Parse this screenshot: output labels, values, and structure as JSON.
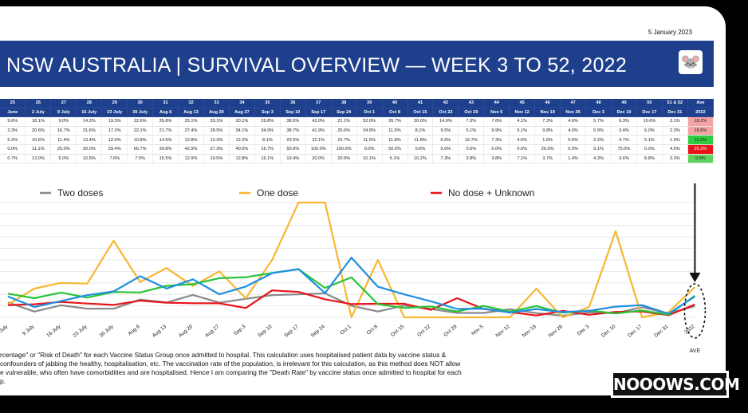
{
  "report_date": "5 January 2023",
  "title": "NSW AUSTRALIA  |  SURVIVAL OVERVIEW — WEEK 3 TO 52, 2022",
  "mascot_icon": "mouse-face-icon",
  "table": {
    "week_row": [
      "25",
      "26",
      "27",
      "28",
      "29",
      "30",
      "31",
      "32",
      "33",
      "34",
      "35",
      "36",
      "37",
      "38",
      "39",
      "40",
      "41",
      "42",
      "43",
      "44",
      "45",
      "46",
      "47",
      "48",
      "49",
      "50",
      "51 & 52",
      "Ave"
    ],
    "date_row": [
      "June",
      "2 July",
      "9 July",
      "16 July",
      "23 July",
      "30 July",
      "Aug 6",
      "Aug 13",
      "Aug 20",
      "Aug 27",
      "Sep 3",
      "Sep 10",
      "Sep 17",
      "Sep 24",
      "Oct 1",
      "Oct 8",
      "Oct 15",
      "Oct 22",
      "Oct 29",
      "Nov 5",
      "Nov 12",
      "Nov 19",
      "Nov 26",
      "Dec 3",
      "Dec 10",
      "Dec 17",
      "Dec 31",
      "2022"
    ],
    "rows": [
      [
        "9.6%",
        "18.1%",
        "9.0%",
        "14.2%",
        "19.3%",
        "22.6%",
        "35.8%",
        "25.1%",
        "33.1%",
        "20.1%",
        "26.8%",
        "38.5%",
        "42.0%",
        "21.1%",
        "52.0%",
        "26.7%",
        "20.0%",
        "14.0%",
        "7.3%",
        "7.6%",
        "4.1%",
        "7.2%",
        "4.6%",
        "5.7%",
        "9.3%",
        "10.6%",
        "3.1%",
        "18.2%"
      ],
      [
        "2.3%",
        "20.6%",
        "16.7%",
        "21.6%",
        "17.2%",
        "22.1%",
        "21.7%",
        "27.4%",
        "28.9%",
        "34.1%",
        "34.9%",
        "38.7%",
        "41.9%",
        "25.6%",
        "34.8%",
        "11.5%",
        "8.1%",
        "9.5%",
        "5.1%",
        "9.9%",
        "5.1%",
        "9.8%",
        "4.0%",
        "5.9%",
        "3.4%",
        "6.0%",
        "2.3%",
        "18.8%"
      ],
      [
        "5.2%",
        "10.6%",
        "11.4%",
        "13.4%",
        "12.0%",
        "10.8%",
        "14.5%",
        "12.8%",
        "12.3%",
        "12.2%",
        "8.1%",
        "23.5%",
        "22.1%",
        "15.7%",
        "11.5%",
        "11.8%",
        "11.8%",
        "6.5%",
        "16.7%",
        "7.3%",
        "4.6%",
        "1.6%",
        "5.6%",
        "2.2%",
        "4.7%",
        "5.1%",
        "1.9%",
        "11.2%"
      ],
      [
        "0.0%",
        "11.1%",
        "25.0%",
        "30.0%",
        "29.4%",
        "66.7%",
        "30.8%",
        "42.9%",
        "27.3%",
        "40.0%",
        "16.7%",
        "50.0%",
        "100.0%",
        "100.0%",
        "0.0%",
        "50.0%",
        "0.0%",
        "0.0%",
        "0.0%",
        "0.0%",
        "0.0%",
        "25.0%",
        "0.0%",
        "9.1%",
        "75.0%",
        "0.0%",
        "4.5%",
        "26.3%"
      ],
      [
        "0.7%",
        "13.0%",
        "5.0%",
        "10.5%",
        "7.6%",
        "7.5%",
        "15.5%",
        "12.9%",
        "19.5%",
        "12.8%",
        "16.1%",
        "19.4%",
        "20.0%",
        "20.9%",
        "10.1%",
        "5.1%",
        "10.2%",
        "7.3%",
        "3.8%",
        "3.8%",
        "7.1%",
        "3.7%",
        "1.4%",
        "4.3%",
        "3.6%",
        "8.8%",
        "3.3%",
        "9.8%"
      ]
    ],
    "ave_colors": [
      "#f4a3a3",
      "#f4a3a3",
      "#2ecc40",
      "#e8141a",
      "#5fd35f"
    ]
  },
  "chart_data": {
    "type": "line",
    "categories": [
      "2 July",
      "9 July",
      "16 July",
      "23 July",
      "30 July",
      "Aug 6",
      "Aug 13",
      "Aug 20",
      "Aug 27",
      "Sep 3",
      "Sep 10",
      "Sep 17",
      "Sep 24",
      "Oct 1",
      "Oct 8",
      "Oct 15",
      "Oct 22",
      "Oct 29",
      "Nov 5",
      "Nov 12",
      "Nov 19",
      "Nov 26",
      "Dec 3",
      "Dec 10",
      "Dec 17",
      "Dec 31",
      "2022"
    ],
    "series": [
      {
        "name": "Two doses",
        "color": "#8a8a8a",
        "values": [
          13.0,
          5.0,
          10.5,
          7.6,
          7.5,
          15.5,
          12.9,
          19.5,
          12.8,
          16.1,
          19.4,
          20.0,
          20.9,
          10.1,
          5.1,
          10.2,
          7.3,
          3.8,
          3.8,
          7.1,
          3.7,
          1.4,
          4.3,
          3.6,
          8.8,
          3.3,
          9.8
        ]
      },
      {
        "name": "One dose",
        "color": "#f7b733",
        "values": [
          11.1,
          25.0,
          30.0,
          29.4,
          66.7,
          30.8,
          42.9,
          27.3,
          40.0,
          16.7,
          50.0,
          100.0,
          100.0,
          0.0,
          50.0,
          0.0,
          0.0,
          0.0,
          0.0,
          0.0,
          25.0,
          0.0,
          9.1,
          75.0,
          0.0,
          4.5,
          26.3
        ]
      },
      {
        "name": "No dose + Unknown",
        "color": "#e8141a",
        "values": [
          10.6,
          11.4,
          13.4,
          12.0,
          10.8,
          14.5,
          12.8,
          12.3,
          12.2,
          8.1,
          23.5,
          22.1,
          15.7,
          11.5,
          11.8,
          11.8,
          6.5,
          16.7,
          7.3,
          4.6,
          1.6,
          5.6,
          2.2,
          4.7,
          5.1,
          1.9,
          11.2
        ]
      },
      {
        "name": "",
        "color": "#27c437",
        "values": [
          20.6,
          16.7,
          21.6,
          17.2,
          22.1,
          21.7,
          27.4,
          28.9,
          34.1,
          34.9,
          38.7,
          41.9,
          25.6,
          34.8,
          11.5,
          8.1,
          9.5,
          5.1,
          9.9,
          5.1,
          9.8,
          4.0,
          5.9,
          3.4,
          6.0,
          2.3,
          18.8
        ]
      },
      {
        "name": "",
        "color": "#1e8fe0",
        "values": [
          18.1,
          9.0,
          14.2,
          19.3,
          22.6,
          35.8,
          25.1,
          33.1,
          20.1,
          26.8,
          38.5,
          42.0,
          21.1,
          52.0,
          26.7,
          20.0,
          14.0,
          7.3,
          7.6,
          4.1,
          7.2,
          4.6,
          5.7,
          9.3,
          10.6,
          3.1,
          18.2
        ]
      }
    ],
    "ylim": [
      0,
      100
    ],
    "grid": true,
    "legend_position": "top",
    "annotation": "AVE"
  },
  "footnote": [
    "rcentage\" or \"Risk of Death\" for each Vaccine Status Group once admitted to hospital. This calculation uses hospitalised patient data by vaccine status &",
    "confounders of jabbing the healthy, hospitalisation, etc. The vaccination rate of the population, is irrelevant for this calculation, as this method does NOT allow",
    "e vulnerable, who often have comorbidities and are hospitalised. Hence I am comparing the \"Death Rate\" by vaccine status once admitted to hospital for each",
    "p."
  ],
  "brand": "NOOOWS.COM"
}
